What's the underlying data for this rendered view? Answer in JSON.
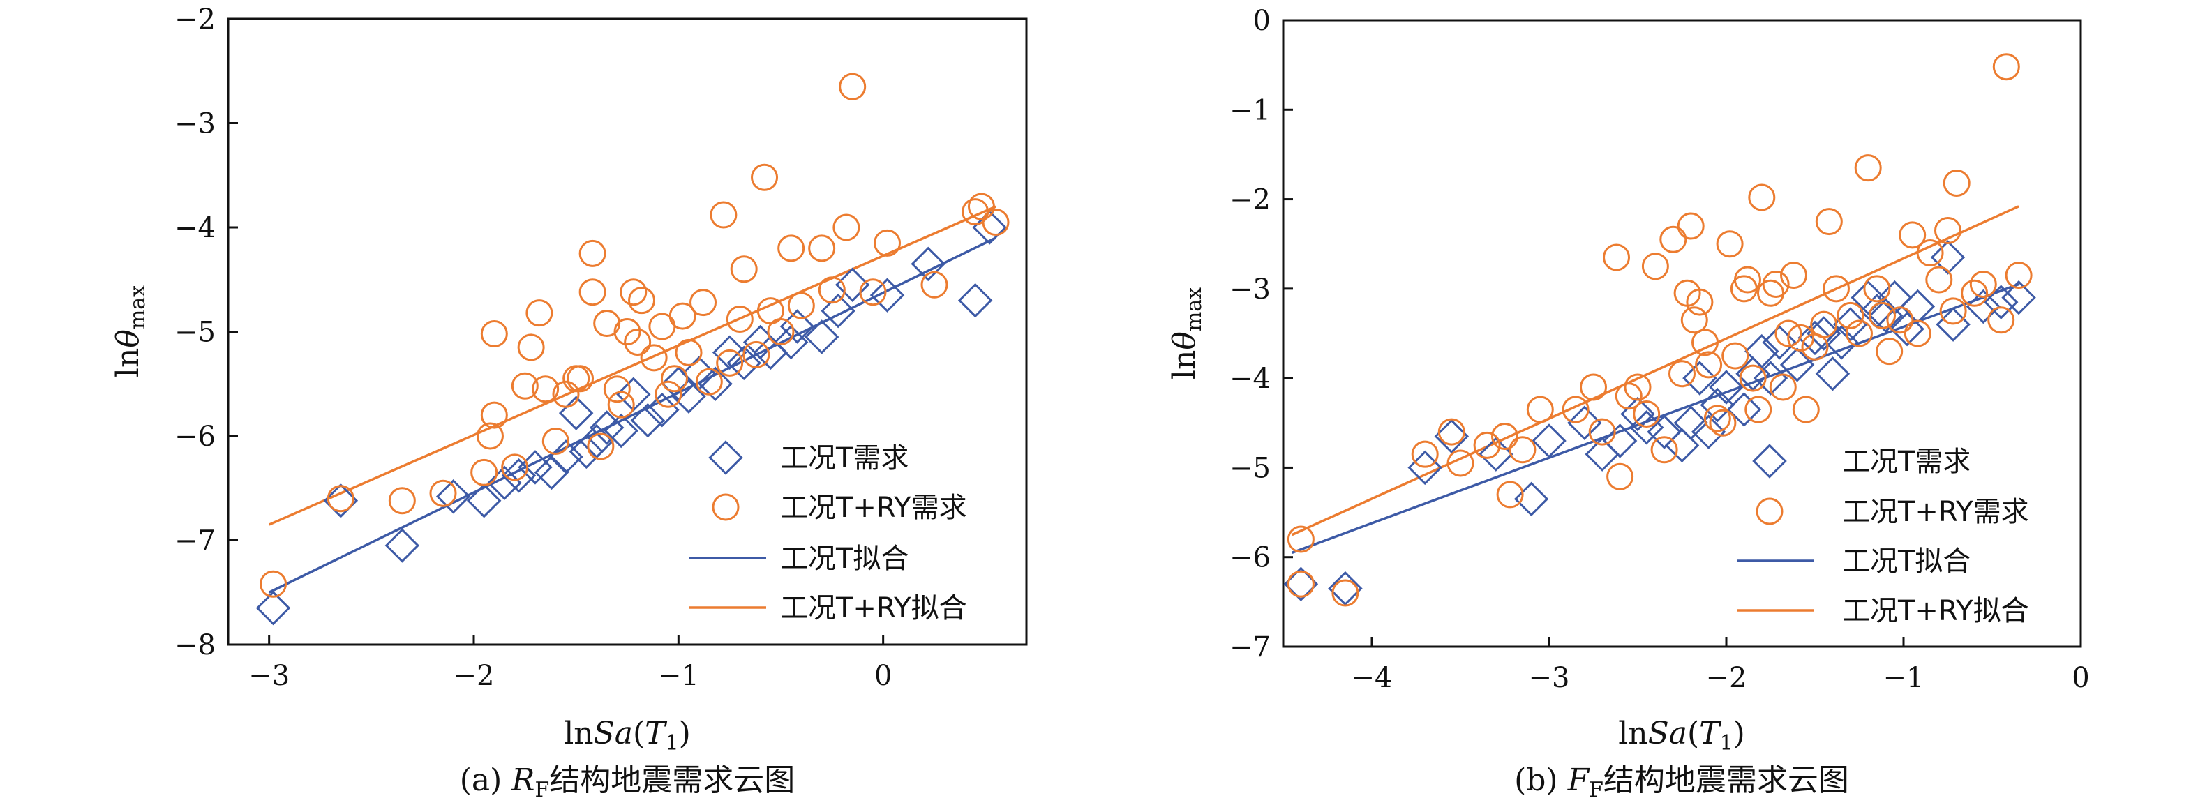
{
  "colors": {
    "series_T": "#3d5aa6",
    "series_TRY": "#ec7c30",
    "axis": "#111111"
  },
  "chart_data": [
    {
      "type": "scatter",
      "panel": "a",
      "caption_prefix": "(a) ",
      "caption_var": "R",
      "caption_sub": "F",
      "caption_rest": "结构地震需求云图",
      "xlabel": {
        "pre": "ln",
        "ital": "Sa",
        "mid": "(",
        "ital2": "T",
        "sub": "1",
        "post": ")"
      },
      "ylabel": {
        "pre": "ln",
        "ital": "θ",
        "sub": "max"
      },
      "xlim": [
        -3.2,
        0.7
      ],
      "ylim": [
        -8,
        -2
      ],
      "xticks": [
        -3,
        -2,
        -1,
        0
      ],
      "yticks": [
        -8,
        -7,
        -6,
        -5,
        -4,
        -3,
        -2
      ],
      "xtick_labels": [
        "−3",
        "−2",
        "−1",
        "0"
      ],
      "ytick_labels": [
        "−8",
        "−7",
        "−6",
        "−5",
        "−4",
        "−3",
        "−2"
      ],
      "legend": [
        "工况T需求",
        "工况T+RY需求",
        "工况T拟合",
        "工况T+RY拟合"
      ],
      "series": [
        {
          "name": "工况T需求",
          "marker": "diamond",
          "color": "#3d5aa6",
          "points": [
            [
              -2.98,
              -7.65
            ],
            [
              -2.65,
              -6.62
            ],
            [
              -2.35,
              -7.05
            ],
            [
              -2.1,
              -6.58
            ],
            [
              -1.95,
              -6.62
            ],
            [
              -1.85,
              -6.45
            ],
            [
              -1.78,
              -6.38
            ],
            [
              -1.7,
              -6.3
            ],
            [
              -1.62,
              -6.35
            ],
            [
              -1.55,
              -6.2
            ],
            [
              -1.5,
              -5.78
            ],
            [
              -1.45,
              -6.15
            ],
            [
              -1.4,
              -6.05
            ],
            [
              -1.35,
              -5.92
            ],
            [
              -1.28,
              -5.95
            ],
            [
              -1.22,
              -5.6
            ],
            [
              -1.15,
              -5.85
            ],
            [
              -1.08,
              -5.75
            ],
            [
              -1.0,
              -5.5
            ],
            [
              -0.95,
              -5.62
            ],
            [
              -0.9,
              -5.4
            ],
            [
              -0.82,
              -5.5
            ],
            [
              -0.75,
              -5.2
            ],
            [
              -0.68,
              -5.3
            ],
            [
              -0.6,
              -5.1
            ],
            [
              -0.55,
              -5.2
            ],
            [
              -0.45,
              -5.1
            ],
            [
              -0.42,
              -4.95
            ],
            [
              -0.3,
              -5.05
            ],
            [
              -0.22,
              -4.8
            ],
            [
              -0.15,
              -4.55
            ],
            [
              0.02,
              -4.65
            ],
            [
              0.22,
              -4.35
            ],
            [
              0.45,
              -4.7
            ],
            [
              0.52,
              -4.0
            ]
          ]
        },
        {
          "name": "工况T+RY需求",
          "marker": "circle",
          "color": "#ec7c30",
          "points": [
            [
              -2.98,
              -7.42
            ],
            [
              -2.65,
              -6.6
            ],
            [
              -2.35,
              -6.62
            ],
            [
              -2.15,
              -6.55
            ],
            [
              -1.95,
              -6.35
            ],
            [
              -1.92,
              -6.0
            ],
            [
              -1.9,
              -5.8
            ],
            [
              -1.9,
              -5.02
            ],
            [
              -1.8,
              -6.3
            ],
            [
              -1.75,
              -5.52
            ],
            [
              -1.72,
              -5.15
            ],
            [
              -1.68,
              -4.82
            ],
            [
              -1.65,
              -5.55
            ],
            [
              -1.6,
              -6.05
            ],
            [
              -1.55,
              -5.6
            ],
            [
              -1.5,
              -5.45
            ],
            [
              -1.48,
              -5.45
            ],
            [
              -1.42,
              -4.62
            ],
            [
              -1.42,
              -4.25
            ],
            [
              -1.38,
              -6.1
            ],
            [
              -1.35,
              -4.92
            ],
            [
              -1.3,
              -5.55
            ],
            [
              -1.28,
              -5.7
            ],
            [
              -1.25,
              -5.0
            ],
            [
              -1.22,
              -4.62
            ],
            [
              -1.2,
              -5.1
            ],
            [
              -1.18,
              -4.7
            ],
            [
              -1.12,
              -5.25
            ],
            [
              -1.08,
              -4.95
            ],
            [
              -1.05,
              -5.6
            ],
            [
              -1.02,
              -5.45
            ],
            [
              -0.98,
              -4.85
            ],
            [
              -0.95,
              -5.2
            ],
            [
              -0.88,
              -4.72
            ],
            [
              -0.85,
              -5.48
            ],
            [
              -0.78,
              -3.88
            ],
            [
              -0.75,
              -5.3
            ],
            [
              -0.7,
              -4.88
            ],
            [
              -0.68,
              -4.4
            ],
            [
              -0.62,
              -5.22
            ],
            [
              -0.58,
              -3.52
            ],
            [
              -0.55,
              -4.8
            ],
            [
              -0.5,
              -5.0
            ],
            [
              -0.45,
              -4.2
            ],
            [
              -0.4,
              -4.75
            ],
            [
              -0.3,
              -4.2
            ],
            [
              -0.25,
              -4.6
            ],
            [
              -0.18,
              -4.0
            ],
            [
              -0.15,
              -2.65
            ],
            [
              -0.05,
              -4.62
            ],
            [
              0.02,
              -4.15
            ],
            [
              0.25,
              -4.55
            ],
            [
              0.45,
              -3.85
            ],
            [
              0.48,
              -3.8
            ],
            [
              0.55,
              -3.95
            ]
          ]
        }
      ],
      "fits": [
        {
          "name": "工况T拟合",
          "color": "#3d5aa6",
          "x": [
            -3.0,
            0.55
          ],
          "y": [
            -7.5,
            -4.1
          ]
        },
        {
          "name": "工况T+RY拟合",
          "color": "#ec7c30",
          "x": [
            -3.0,
            0.55
          ],
          "y": [
            -6.85,
            -3.8
          ]
        }
      ]
    },
    {
      "type": "scatter",
      "panel": "b",
      "caption_prefix": "(b) ",
      "caption_var": "F",
      "caption_sub": "F",
      "caption_rest": "结构地震需求云图",
      "xlabel": {
        "pre": "ln",
        "ital": "Sa",
        "mid": "(",
        "ital2": "T",
        "sub": "1",
        "post": ")"
      },
      "ylabel": {
        "pre": "ln",
        "ital": "θ",
        "sub": "max"
      },
      "xlim": [
        -4.5,
        0
      ],
      "ylim": [
        -7,
        0
      ],
      "xticks": [
        -4,
        -3,
        -2,
        -1,
        0
      ],
      "yticks": [
        -7,
        -6,
        -5,
        -4,
        -3,
        -2,
        -1,
        0
      ],
      "xtick_labels": [
        "−4",
        "−3",
        "−2",
        "−1",
        "0"
      ],
      "ytick_labels": [
        "−7",
        "−6",
        "−5",
        "−4",
        "−3",
        "−2",
        "−1",
        "0"
      ],
      "legend": [
        "工况T需求",
        "工况T+RY需求",
        "工况T拟合",
        "工况T+RY拟合"
      ],
      "series": [
        {
          "name": "工况T需求",
          "marker": "diamond",
          "color": "#3d5aa6",
          "points": [
            [
              -4.4,
              -6.3
            ],
            [
              -4.15,
              -6.35
            ],
            [
              -3.7,
              -5.0
            ],
            [
              -3.55,
              -4.65
            ],
            [
              -3.3,
              -4.85
            ],
            [
              -3.1,
              -5.35
            ],
            [
              -3.0,
              -4.7
            ],
            [
              -2.8,
              -4.5
            ],
            [
              -2.7,
              -4.85
            ],
            [
              -2.6,
              -4.7
            ],
            [
              -2.5,
              -4.4
            ],
            [
              -2.45,
              -4.55
            ],
            [
              -2.35,
              -4.6
            ],
            [
              -2.25,
              -4.75
            ],
            [
              -2.2,
              -4.5
            ],
            [
              -2.15,
              -4.0
            ],
            [
              -2.1,
              -4.6
            ],
            [
              -2.05,
              -4.3
            ],
            [
              -2.0,
              -4.1
            ],
            [
              -1.9,
              -4.35
            ],
            [
              -1.85,
              -3.95
            ],
            [
              -1.8,
              -3.7
            ],
            [
              -1.75,
              -4.0
            ],
            [
              -1.7,
              -3.6
            ],
            [
              -1.6,
              -3.85
            ],
            [
              -1.5,
              -3.55
            ],
            [
              -1.45,
              -3.5
            ],
            [
              -1.4,
              -3.95
            ],
            [
              -1.35,
              -3.6
            ],
            [
              -1.3,
              -3.4
            ],
            [
              -1.2,
              -3.1
            ],
            [
              -1.15,
              -3.25
            ],
            [
              -1.1,
              -3.3
            ],
            [
              -1.05,
              -3.1
            ],
            [
              -0.98,
              -3.45
            ],
            [
              -0.92,
              -3.2
            ],
            [
              -0.75,
              -2.65
            ],
            [
              -0.72,
              -3.4
            ],
            [
              -0.55,
              -3.2
            ],
            [
              -0.45,
              -3.15
            ],
            [
              -0.35,
              -3.1
            ]
          ]
        },
        {
          "name": "工况T+RY需求",
          "marker": "circle",
          "color": "#ec7c30",
          "points": [
            [
              -4.4,
              -5.8
            ],
            [
              -4.4,
              -6.3
            ],
            [
              -4.15,
              -6.4
            ],
            [
              -3.7,
              -4.85
            ],
            [
              -3.55,
              -4.6
            ],
            [
              -3.5,
              -4.95
            ],
            [
              -3.35,
              -4.75
            ],
            [
              -3.25,
              -4.65
            ],
            [
              -3.22,
              -5.3
            ],
            [
              -3.15,
              -4.8
            ],
            [
              -3.05,
              -4.35
            ],
            [
              -2.85,
              -4.35
            ],
            [
              -2.75,
              -4.1
            ],
            [
              -2.7,
              -4.6
            ],
            [
              -2.62,
              -2.65
            ],
            [
              -2.6,
              -5.1
            ],
            [
              -2.55,
              -4.2
            ],
            [
              -2.5,
              -4.1
            ],
            [
              -2.45,
              -4.4
            ],
            [
              -2.4,
              -2.75
            ],
            [
              -2.35,
              -4.8
            ],
            [
              -2.3,
              -2.45
            ],
            [
              -2.25,
              -3.95
            ],
            [
              -2.22,
              -3.05
            ],
            [
              -2.2,
              -2.3
            ],
            [
              -2.18,
              -3.35
            ],
            [
              -2.15,
              -3.15
            ],
            [
              -2.12,
              -3.6
            ],
            [
              -2.1,
              -3.85
            ],
            [
              -2.05,
              -4.45
            ],
            [
              -2.02,
              -4.5
            ],
            [
              -1.98,
              -2.5
            ],
            [
              -1.95,
              -3.75
            ],
            [
              -1.9,
              -3.0
            ],
            [
              -1.88,
              -2.9
            ],
            [
              -1.85,
              -4.0
            ],
            [
              -1.82,
              -4.35
            ],
            [
              -1.8,
              -1.98
            ],
            [
              -1.75,
              -3.05
            ],
            [
              -1.72,
              -2.95
            ],
            [
              -1.68,
              -4.1
            ],
            [
              -1.65,
              -3.5
            ],
            [
              -1.62,
              -2.85
            ],
            [
              -1.58,
              -3.55
            ],
            [
              -1.55,
              -4.35
            ],
            [
              -1.5,
              -3.65
            ],
            [
              -1.45,
              -3.4
            ],
            [
              -1.42,
              -2.25
            ],
            [
              -1.38,
              -3.0
            ],
            [
              -1.3,
              -3.3
            ],
            [
              -1.25,
              -3.5
            ],
            [
              -1.2,
              -1.65
            ],
            [
              -1.15,
              -3.0
            ],
            [
              -1.12,
              -3.3
            ],
            [
              -1.08,
              -3.7
            ],
            [
              -1.02,
              -3.35
            ],
            [
              -0.95,
              -2.4
            ],
            [
              -0.92,
              -3.5
            ],
            [
              -0.85,
              -2.6
            ],
            [
              -0.8,
              -2.9
            ],
            [
              -0.75,
              -2.35
            ],
            [
              -0.72,
              -3.25
            ],
            [
              -0.7,
              -1.82
            ],
            [
              -0.6,
              -3.05
            ],
            [
              -0.55,
              -2.95
            ],
            [
              -0.45,
              -3.35
            ],
            [
              -0.42,
              -0.52
            ],
            [
              -0.35,
              -2.85
            ]
          ]
        }
      ],
      "fits": [
        {
          "name": "工况T拟合",
          "color": "#3d5aa6",
          "x": [
            -4.45,
            -0.35
          ],
          "y": [
            -5.95,
            -2.95
          ]
        },
        {
          "name": "工况T+RY拟合",
          "color": "#ec7c30",
          "x": [
            -4.45,
            -0.35
          ],
          "y": [
            -5.75,
            -2.08
          ]
        }
      ]
    }
  ]
}
